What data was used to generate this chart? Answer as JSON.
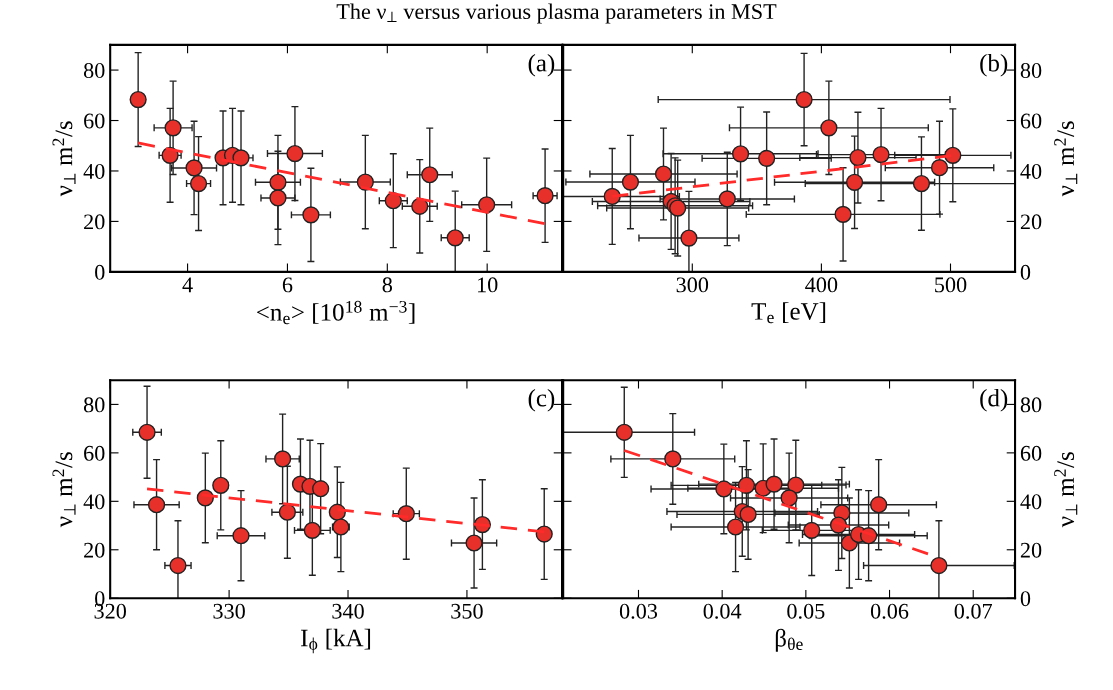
{
  "chart_data": [
    {
      "type": "scatter",
      "title": "The ν$_{⊥}$ versus various plasma parameters in MST",
      "xlabel": "<n$_{e}$> [10$^{18}$ m$^{−3}$]",
      "ylabel": "ν$_{⊥}$ m$^{2}$/s",
      "annotations": [
        "(a)"
      ],
      "xlim": [
        2.45,
        11.5
      ],
      "xticks": [
        4,
        6,
        8,
        10
      ],
      "ylim": [
        0,
        90
      ],
      "yticks": [
        0,
        20,
        40,
        60,
        80
      ],
      "marker": "circle",
      "grid": false,
      "series": [
        {
          "color": "#e8302a",
          "x": [
            3.01,
            3.71,
            3.65,
            4.13,
            4.22,
            4.71,
            4.9,
            5.07,
            5.81,
            5.81,
            6.15,
            6.47,
            7.56,
            8.12,
            8.65,
            8.85,
            9.36,
            9.99,
            11.16
          ],
          "values": [
            68.3,
            57.1,
            46.2,
            41.2,
            35.0,
            45.2,
            46.2,
            45.2,
            35.5,
            29.3,
            46.9,
            22.6,
            35.6,
            28.2,
            26.0,
            38.5,
            13.5,
            26.6,
            30.2
          ],
          "errors": [
            18.6,
            18.5,
            18.6,
            18.5,
            18.6,
            18.6,
            18.6,
            18.6,
            18.6,
            18.5,
            18.6,
            18.5,
            18.5,
            18.6,
            18.5,
            18.5,
            18.5,
            18.5,
            18.5
          ],
          "xerrors": [
            null,
            0.38,
            0.22,
            0.45,
            0.24,
            null,
            null,
            0.24,
            0.45,
            0.34,
            0.55,
            0.39,
            0.5,
            0.28,
            0.35,
            0.45,
            0.28,
            0.5,
            0.24
          ]
        },
        {
          "type": "line",
          "color": "#ff2a2a",
          "line_style": "dashed",
          "marker": "none",
          "x": [
            3.01,
            11.15
          ],
          "values": [
            51.1,
            19.1
          ]
        }
      ]
    },
    {
      "type": "scatter",
      "xlabel": "T$_{e}$ [eV]",
      "y2label": "ν$_{⊥}$ m$^{2}$/s",
      "annotations": [
        "(b)"
      ],
      "xlim": [
        200,
        550
      ],
      "xticks": [
        300,
        400,
        500
      ],
      "y2lim": [
        0,
        90
      ],
      "y2ticks": [
        0,
        20,
        40,
        60,
        80
      ],
      "marker": "circle",
      "grid": false,
      "series": [
        {
          "axis": "y2",
          "color": "#e8302a",
          "x": [
            238.0,
            252.1,
            277.7,
            283.6,
            286.7,
            288.7,
            297.4,
            327.1,
            337.4,
            357.6,
            386.6,
            405.8,
            416.8,
            425.7,
            428.3,
            446.2,
            477.5,
            491.5,
            501.8
          ],
          "values": [
            29.9,
            35.6,
            38.8,
            27.9,
            26.2,
            25.3,
            13.4,
            28.9,
            46.8,
            45.0,
            68.3,
            57.1,
            22.8,
            35.5,
            45.3,
            46.5,
            35.0,
            41.3,
            46.2
          ],
          "errors": [
            19,
            18.5,
            18.2,
            19,
            19,
            19,
            18.5,
            18.5,
            18.5,
            18.4,
            18.3,
            18.5,
            18.5,
            18.3,
            18,
            18.3,
            18.5,
            18.4,
            18.4
          ],
          "xerrors": [
            52,
            50,
            57,
            61,
            60,
            55,
            38.7,
            52,
            60,
            50,
            113,
            77,
            75,
            62,
            45,
            50,
            90,
            42,
            45
          ]
        },
        {
          "type": "line",
          "axis": "y2",
          "color": "#ff2a2a",
          "line_style": "dashed",
          "marker": "none",
          "x": [
            238.0,
            500.5
          ],
          "values": [
            29.9,
            46.1
          ]
        }
      ]
    },
    {
      "type": "scatter",
      "xlabel": "I$_{ϕ}$ [kA]",
      "ylabel": "ν$_{⊥}$ m$^{2}$/s",
      "annotations": [
        "(c)"
      ],
      "xlim": [
        320,
        358
      ],
      "xticks": [
        320,
        330,
        340,
        350
      ],
      "ylim": [
        0,
        90
      ],
      "yticks": [
        0,
        20,
        40,
        60,
        80
      ],
      "marker": "circle",
      "grid": false,
      "series": [
        {
          "color": "#e8302a",
          "x": [
            323.1,
            323.9,
            325.7,
            328.0,
            329.3,
            331.0,
            334.5,
            334.9,
            336.0,
            336.8,
            337.7,
            337.0,
            339.1,
            339.4,
            344.9,
            350.6,
            351.3,
            356.5
          ],
          "values": [
            68.5,
            38.6,
            13.5,
            41.4,
            46.6,
            25.8,
            57.5,
            35.5,
            47.1,
            46.2,
            45.2,
            28.0,
            35.5,
            29.4,
            34.9,
            22.8,
            30.4,
            26.5
          ],
          "errors": [
            19,
            18.6,
            18.5,
            18.5,
            18.4,
            18.6,
            18.5,
            19,
            18.6,
            19,
            18.6,
            18.5,
            18.7,
            18.4,
            18.8,
            18.6,
            18.5,
            18.7
          ],
          "xerrors": [
            1.2,
            1.9,
            1.1,
            null,
            0.6,
            2.0,
            1.4,
            1.3,
            null,
            null,
            null,
            1.5,
            null,
            0.7,
            1.1,
            1.9,
            null,
            null
          ]
        },
        {
          "type": "line",
          "color": "#ff2a2a",
          "line_style": "dashed",
          "marker": "none",
          "x": [
            323.1,
            356.5
          ],
          "values": [
            45.1,
            27.4
          ]
        }
      ]
    },
    {
      "type": "scatter",
      "xlabel": "β$_{θe}$",
      "y2label": "ν$_{⊥}$ m$^{2}$/s",
      "annotations": [
        "(d)"
      ],
      "xlim": [
        0.021,
        0.075
      ],
      "xticks": [
        0.03,
        0.04,
        0.05,
        0.06,
        0.07
      ],
      "y2lim": [
        0,
        90
      ],
      "y2ticks": [
        0,
        20,
        40,
        60,
        80
      ],
      "marker": "circle",
      "grid": false,
      "series": [
        {
          "axis": "y2",
          "color": "#e8302a",
          "x": [
            0.0283,
            0.0341,
            0.0402,
            0.0429,
            0.0449,
            0.0462,
            0.0488,
            0.048,
            0.0424,
            0.0431,
            0.0416,
            0.0507,
            0.0543,
            0.0539,
            0.0552,
            0.0563,
            0.0575,
            0.0587,
            0.0659
          ],
          "values": [
            68.5,
            57.5,
            45.1,
            46.6,
            45.4,
            47.1,
            46.7,
            41.4,
            35.8,
            34.6,
            29.4,
            28.0,
            35.2,
            30.2,
            22.8,
            26.3,
            25.8,
            38.6,
            13.5
          ],
          "errors": [
            18.6,
            18.7,
            18.5,
            18.4,
            18.3,
            18.6,
            18.5,
            18.5,
            18.5,
            18.5,
            18.4,
            18.6,
            18.8,
            18.7,
            18.6,
            18.5,
            18.6,
            18.6,
            18.5
          ],
          "xerrors": [
            0.0084,
            0.0074,
            0.0087,
            0.009,
            0.009,
            0.009,
            0.006,
            0.007,
            0.009,
            0.0085,
            0.0077,
            0.0059,
            0.008,
            0.006,
            0.006,
            0.0067,
            0.007,
            0.0069,
            0.009
          ]
        },
        {
          "type": "line",
          "axis": "y2",
          "color": "#ff2a2a",
          "line_style": "dashed",
          "marker": "none",
          "x": [
            0.0283,
            0.0646
          ],
          "values": [
            61.0,
            18.3
          ]
        }
      ]
    }
  ]
}
